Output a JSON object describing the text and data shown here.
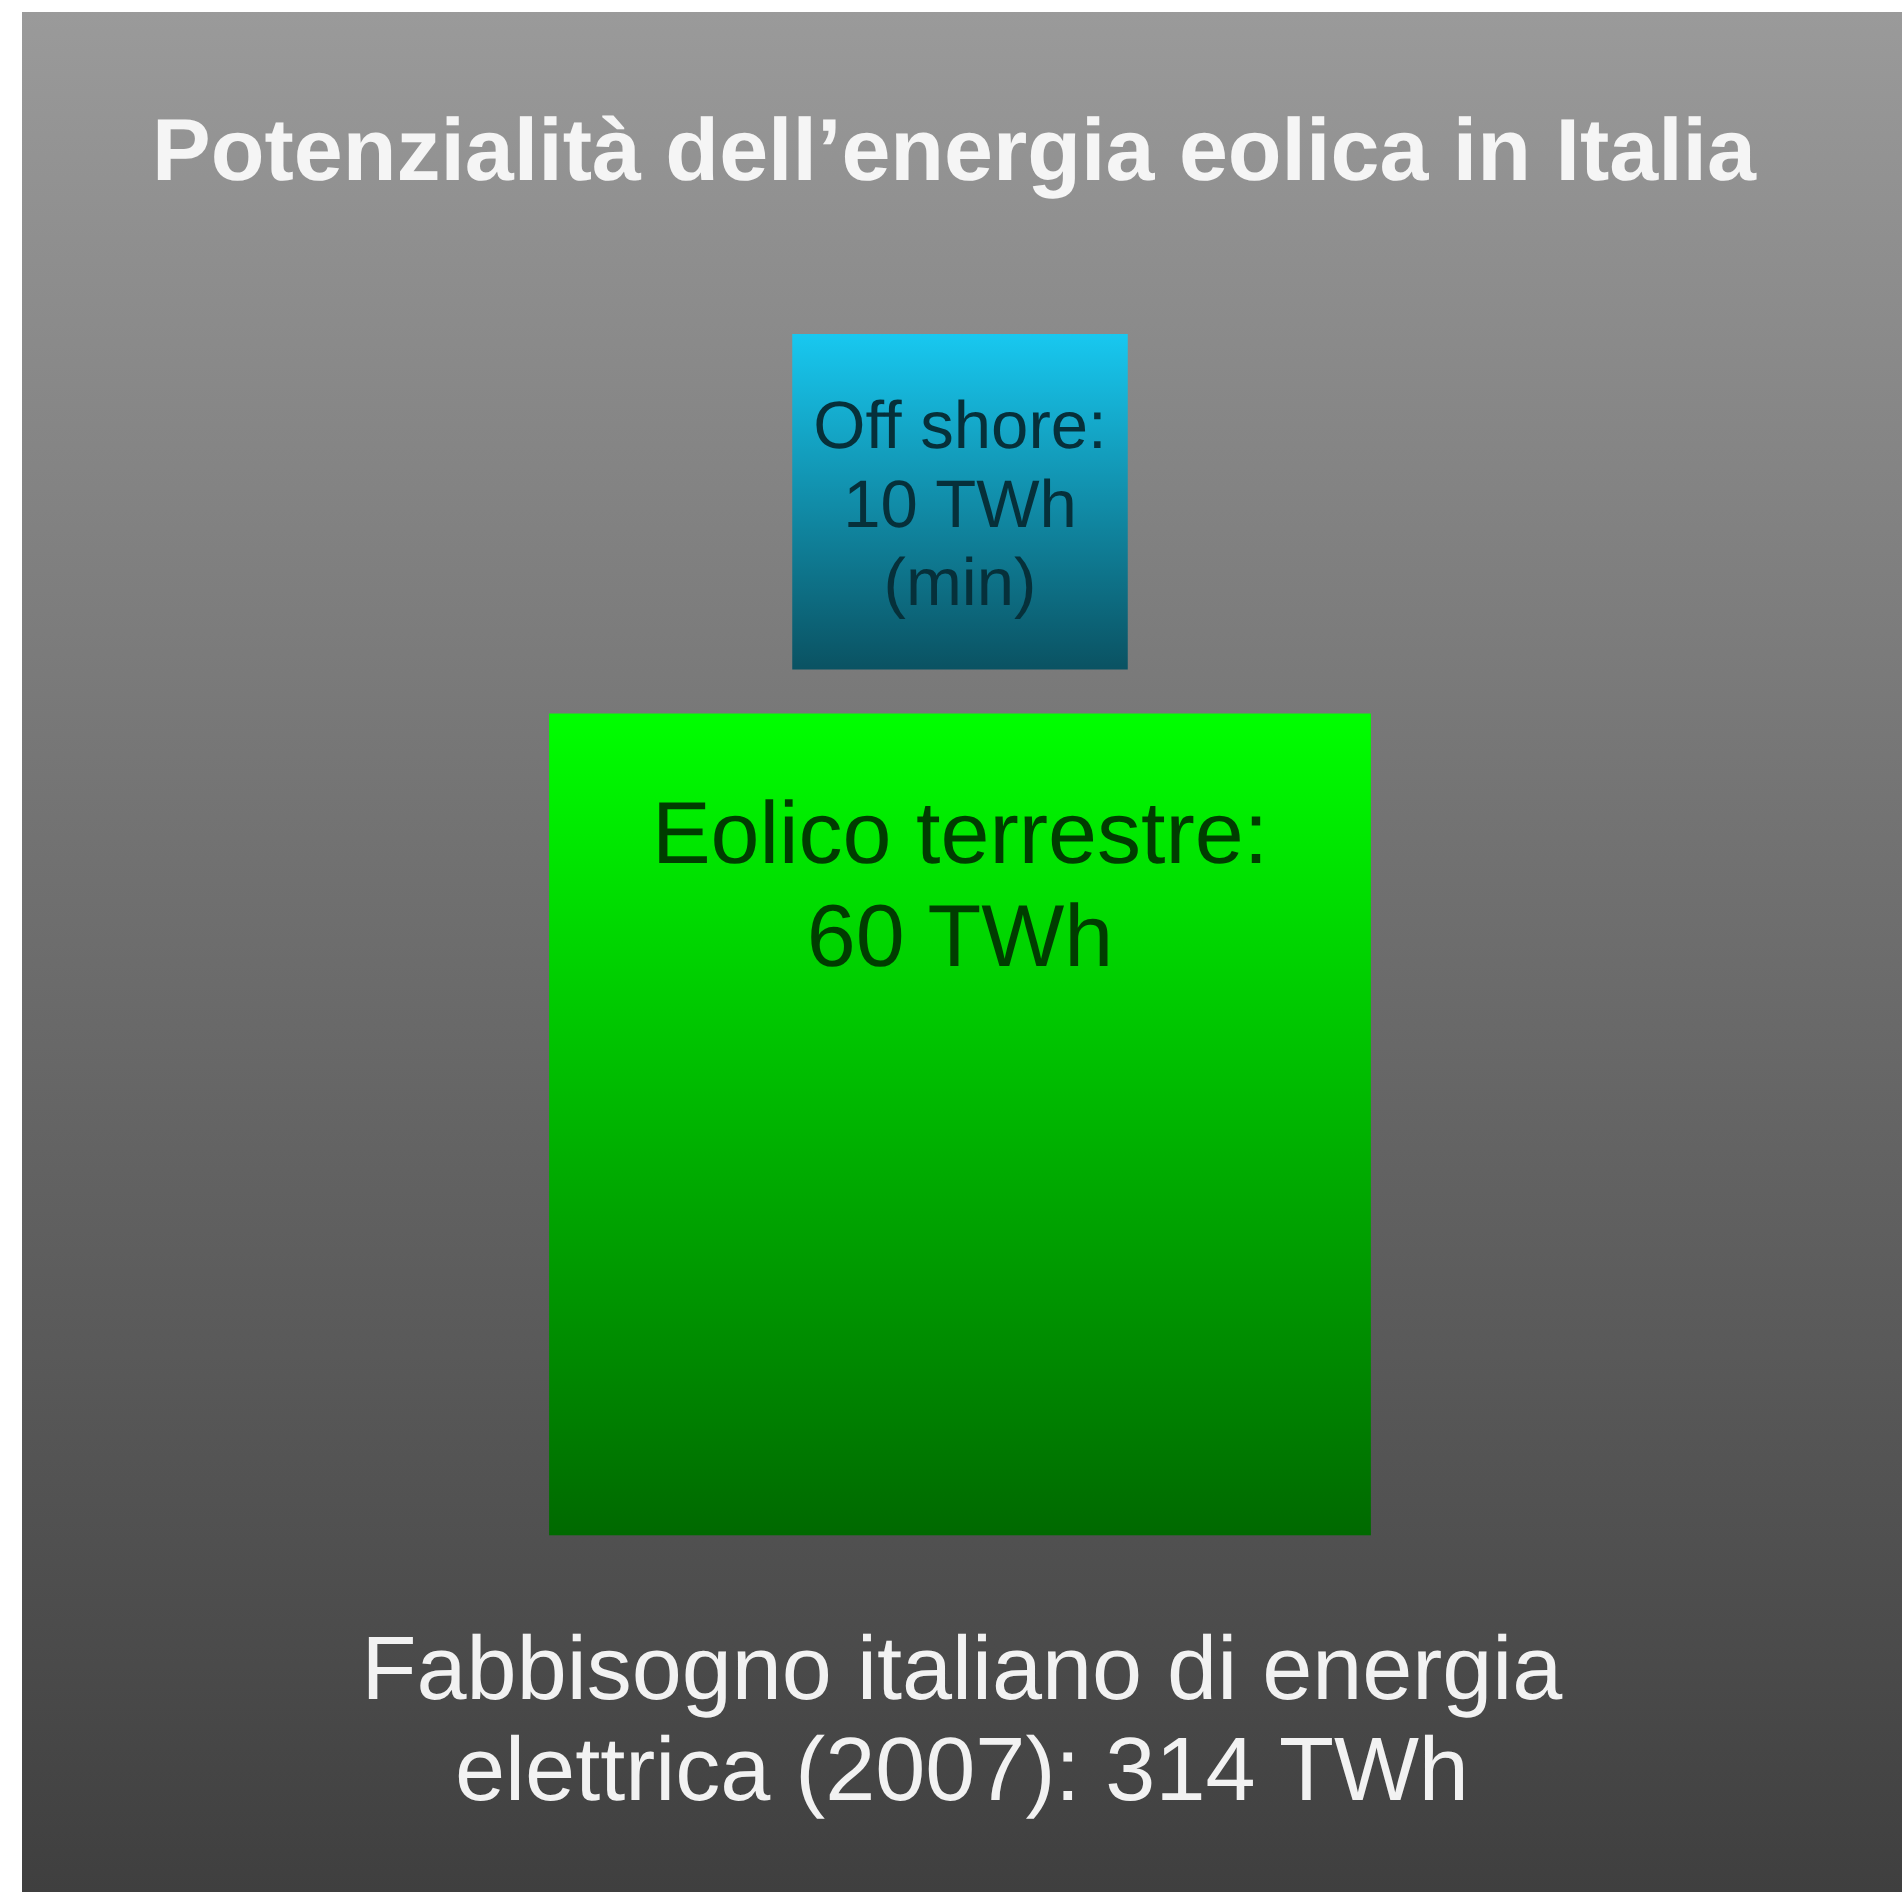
{
  "chart_data": {
    "type": "other",
    "title": "Potenzialità dell’energia eolica in Italia",
    "values": [
      10,
      60,
      314
    ],
    "value_labels": [
      "Off shore: 10 TWh (min)",
      "Eolico terrestre: 60 TWh",
      "Fabbisogno italiano di energia elettrica (2007): 314 TWh"
    ],
    "colors": [
      "#18c8f0",
      "#00ff00",
      "#9a9a9a"
    ]
  }
}
